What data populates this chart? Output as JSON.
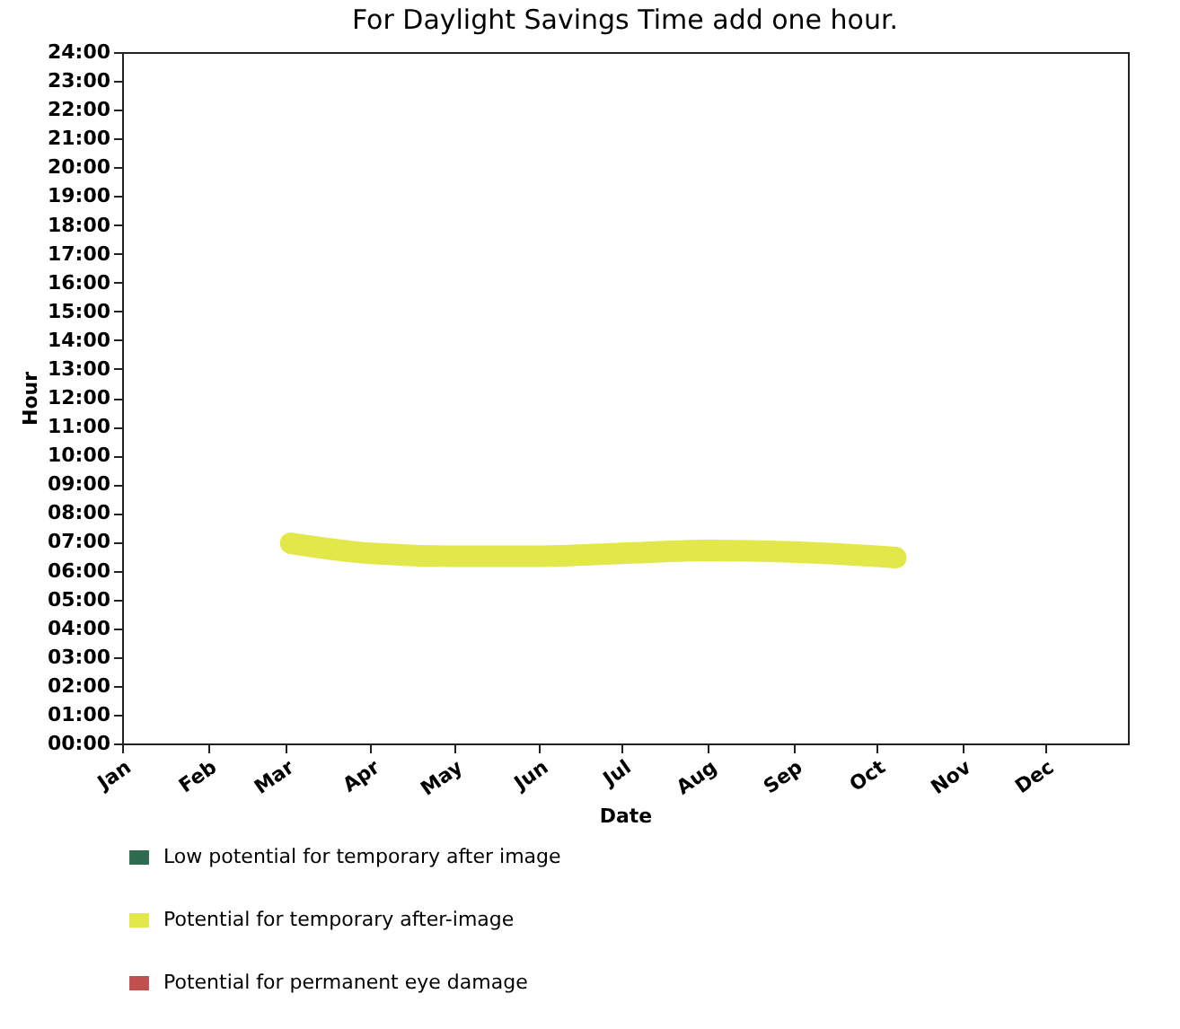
{
  "chart_data": {
    "type": "line",
    "title": "For Daylight Savings Time add one hour.",
    "xlabel": "Date",
    "ylabel": "Hour",
    "x": [
      "--03-03",
      "--04-01",
      "--05-01",
      "--06-01",
      "--07-01",
      "--08-01",
      "--09-01",
      "--10-01",
      "--10-08"
    ],
    "series": [
      {
        "name": "Low potential for temporary after image",
        "color": "#2e6b4f",
        "values": [
          null,
          null,
          null,
          null,
          null,
          null,
          null,
          null,
          null
        ]
      },
      {
        "name": "Potential for temporary after-image",
        "color": "#e3e84a",
        "values": [
          6.95,
          6.6,
          6.5,
          6.5,
          6.6,
          6.7,
          6.65,
          6.5,
          6.45
        ]
      },
      {
        "name": "Potential for permanent eye damage",
        "color": "#c0504d",
        "values": [
          null,
          null,
          null,
          null,
          null,
          null,
          null,
          null,
          null
        ]
      }
    ],
    "xlim": [
      "--01-01",
      "--12-31"
    ],
    "xticks": [
      {
        "value": "--01-01",
        "label": "Jan"
      },
      {
        "value": "--02-01",
        "label": "Feb"
      },
      {
        "value": "--03-01",
        "label": "Mar"
      },
      {
        "value": "--04-01",
        "label": "Apr"
      },
      {
        "value": "--05-01",
        "label": "May"
      },
      {
        "value": "--06-01",
        "label": "Jun"
      },
      {
        "value": "--07-01",
        "label": "Jul"
      },
      {
        "value": "--08-01",
        "label": "Aug"
      },
      {
        "value": "--09-01",
        "label": "Sep"
      },
      {
        "value": "--10-01",
        "label": "Oct"
      },
      {
        "value": "--11-01",
        "label": "Nov"
      },
      {
        "value": "--12-01",
        "label": "Dec"
      }
    ],
    "ylim": [
      0,
      24
    ],
    "yticks": [
      {
        "value": 0,
        "label": "00:00"
      },
      {
        "value": 1,
        "label": "01:00"
      },
      {
        "value": 2,
        "label": "02:00"
      },
      {
        "value": 3,
        "label": "03:00"
      },
      {
        "value": 4,
        "label": "04:00"
      },
      {
        "value": 5,
        "label": "05:00"
      },
      {
        "value": 6,
        "label": "06:00"
      },
      {
        "value": 7,
        "label": "07:00"
      },
      {
        "value": 8,
        "label": "08:00"
      },
      {
        "value": 9,
        "label": "09:00"
      },
      {
        "value": 10,
        "label": "10:00"
      },
      {
        "value": 11,
        "label": "11:00"
      },
      {
        "value": 12,
        "label": "12:00"
      },
      {
        "value": 13,
        "label": "13:00"
      },
      {
        "value": 14,
        "label": "14:00"
      },
      {
        "value": 15,
        "label": "15:00"
      },
      {
        "value": 16,
        "label": "16:00"
      },
      {
        "value": 17,
        "label": "17:00"
      },
      {
        "value": 18,
        "label": "18:00"
      },
      {
        "value": 19,
        "label": "19:00"
      },
      {
        "value": 20,
        "label": "20:00"
      },
      {
        "value": 21,
        "label": "21:00"
      },
      {
        "value": 22,
        "label": "22:00"
      },
      {
        "value": 23,
        "label": "23:00"
      },
      {
        "value": 24,
        "label": "24:00"
      }
    ],
    "grid": false,
    "legend": "bottom",
    "line_style": "solid"
  }
}
